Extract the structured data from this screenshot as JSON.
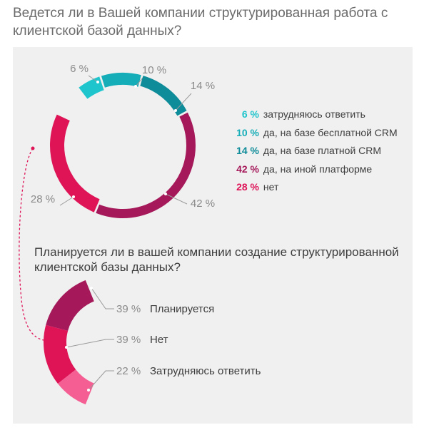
{
  "title": "Ведется ли в Вашей компании структурированная работа с клиентской базой данных?",
  "subtitle": "Планируется ли в вашей компании создание структурированной клиентской базы данных?",
  "colors": {
    "panel": "#f0f0f0",
    "teal_light": "#1fc5cc",
    "teal_mid": "#15adb8",
    "teal_dark": "#0f8c9a",
    "crimson": "#a5195a",
    "magenta": "#de1457",
    "pink_light": "#f45e92"
  },
  "chart_data": [
    {
      "type": "pie",
      "title": "Ведется ли в Вашей компании структурированная работа с клиентской базой данных?",
      "slices": [
        {
          "value": 6,
          "label": "6 %",
          "legend": "затрудняюсь ответить",
          "color": "#1fc5cc"
        },
        {
          "value": 10,
          "label": "10 %",
          "legend": "да, на базе бесплатной CRM",
          "color": "#15adb8"
        },
        {
          "value": 14,
          "label": "14 %",
          "legend": "да, на базе платной CRM",
          "color": "#0f8c9a"
        },
        {
          "value": 42,
          "label": "42 %",
          "legend": "да, на иной платформе",
          "color": "#a5195a"
        },
        {
          "value": 28,
          "label": "28 %",
          "legend": "нет",
          "color": "#de1457"
        }
      ]
    },
    {
      "type": "pie",
      "title": "Планируется ли в вашей компании создание структурированной клиентской базы данных?",
      "slices": [
        {
          "value": 39,
          "label": "39 %",
          "legend": "Планируется",
          "color": "#a5195a"
        },
        {
          "value": 39,
          "label": "39 %",
          "legend": "Нет",
          "color": "#de1457"
        },
        {
          "value": 22,
          "label": "22 %",
          "legend": "Затрудняюсь ответить",
          "color": "#f45e92"
        }
      ]
    }
  ]
}
